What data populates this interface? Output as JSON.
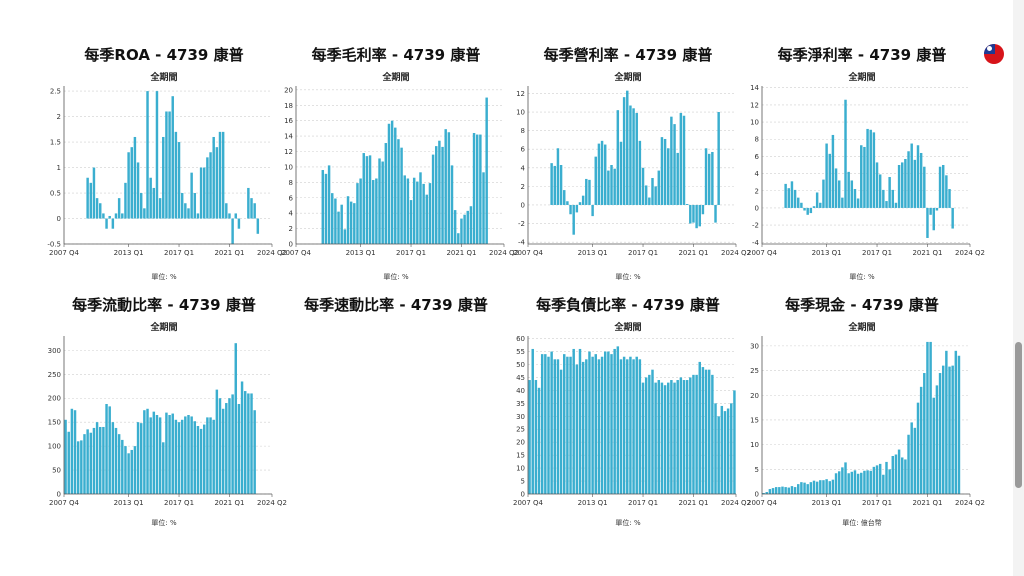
{
  "charts": [
    {
      "title": "每季ROA - 4739 康普",
      "subtitle": "全期間",
      "unit": "單位: %",
      "color": "#3aaecf",
      "chart_data": {
        "type": "bar",
        "ylim": [
          -0.5,
          2.6
        ],
        "yticks": [
          -0.5,
          0,
          0.5,
          1,
          1.5,
          2,
          2.5
        ],
        "ytick_labels": [
          "-0.5",
          "0",
          "0.5",
          "1",
          "1.5",
          "2",
          "2.5"
        ],
        "xtick_labels": [
          "2007 Q4",
          "2013 Q1",
          "2017 Q1",
          "2021 Q1",
          "2024 Q2"
        ],
        "xtick_index": [
          0,
          20,
          36,
          52,
          65
        ],
        "n": 66,
        "values": [
          null,
          null,
          null,
          null,
          null,
          null,
          null,
          0.8,
          0.7,
          1.0,
          0.4,
          0.3,
          0.1,
          -0.2,
          0.05,
          -0.2,
          0.1,
          0.4,
          0.1,
          0.7,
          1.3,
          1.4,
          1.6,
          1.1,
          0.5,
          0.2,
          2.5,
          0.8,
          0.6,
          2.5,
          0.4,
          1.6,
          2.1,
          2.1,
          2.4,
          1.7,
          1.5,
          0.5,
          0.3,
          0.2,
          0.9,
          0.5,
          0.1,
          1.0,
          1.0,
          1.2,
          1.3,
          1.6,
          1.4,
          1.7,
          1.7,
          0.3,
          0.1,
          -0.5,
          0.1,
          -0.2,
          null,
          null,
          0.6,
          0.4,
          0.3,
          -0.3,
          null,
          null,
          null,
          null
        ]
      }
    },
    {
      "title": "每季毛利率 - 4739 康普",
      "subtitle": "全期間",
      "unit": "單位: %",
      "color": "#3aaecf",
      "chart_data": {
        "type": "bar",
        "ylim": [
          0,
          20.5
        ],
        "yticks": [
          0,
          2,
          4,
          6,
          8,
          10,
          12,
          14,
          16,
          18,
          20
        ],
        "ytick_labels": [
          "0",
          "2",
          "4",
          "6",
          "8",
          "10",
          "12",
          "14",
          "16",
          "18",
          "20"
        ],
        "xtick_labels": [
          "2007 Q4",
          "2013 Q1",
          "2017 Q1",
          "2021 Q1",
          "2024 Q2"
        ],
        "xtick_index": [
          0,
          20,
          36,
          52,
          65
        ],
        "n": 66,
        "values": [
          null,
          null,
          null,
          null,
          null,
          null,
          null,
          null,
          9.6,
          9.1,
          10.2,
          6.6,
          5.9,
          4.2,
          5.1,
          1.9,
          6.2,
          5.5,
          5.3,
          7.9,
          8.5,
          11.8,
          11.4,
          11.5,
          8.3,
          8.5,
          11.1,
          10.7,
          13.1,
          15.6,
          16.0,
          15.1,
          13.6,
          12.5,
          8.9,
          8.5,
          5.7,
          8.6,
          8.1,
          9.3,
          7.8,
          6.4,
          7.9,
          11.6,
          12.7,
          13.4,
          12.6,
          14.9,
          14.5,
          10.2,
          4.4,
          1.4,
          3.3,
          3.8,
          4.3,
          4.9,
          14.4,
          14.2,
          14.2,
          9.3,
          19.0,
          null,
          null,
          null,
          null,
          null
        ]
      }
    },
    {
      "title": "每季營利率 - 4739 康普",
      "subtitle": "全期間",
      "unit": "單位: %",
      "color": "#3aaecf",
      "chart_data": {
        "type": "bar",
        "ylim": [
          -4.2,
          12.8
        ],
        "yticks": [
          -4,
          -2,
          0,
          2,
          4,
          6,
          8,
          10,
          12
        ],
        "ytick_labels": [
          "-4",
          "-2",
          "0",
          "2",
          "4",
          "6",
          "8",
          "10",
          "12"
        ],
        "xtick_labels": [
          "2007 Q4",
          "2013 Q1",
          "2017 Q1",
          "2021 Q1",
          "2024 Q2"
        ],
        "xtick_index": [
          0,
          20,
          36,
          52,
          65
        ],
        "n": 66,
        "values": [
          null,
          null,
          null,
          null,
          null,
          null,
          null,
          4.5,
          4.2,
          6.1,
          4.3,
          1.6,
          0.4,
          -1.0,
          -3.2,
          -0.8,
          0.3,
          1.0,
          2.8,
          2.7,
          -1.2,
          5.2,
          6.6,
          6.9,
          6.5,
          3.7,
          4.3,
          3.9,
          10.2,
          6.8,
          11.6,
          12.3,
          10.7,
          10.4,
          9.9,
          6.9,
          4.0,
          2.1,
          0.8,
          2.9,
          2.0,
          3.7,
          7.3,
          7.1,
          6.1,
          9.5,
          8.7,
          5.6,
          9.9,
          9.6,
          0.1,
          -2.0,
          -1.9,
          -2.5,
          -2.3,
          -1.0,
          6.1,
          5.5,
          5.7,
          -1.9,
          10.0,
          null,
          null,
          null,
          null,
          null
        ]
      }
    },
    {
      "title": "每季淨利率 - 4739 康普",
      "subtitle": "全期間",
      "unit": "單位: %",
      "color": "#3aaecf",
      "chart_data": {
        "type": "bar",
        "ylim": [
          -4.2,
          14.2
        ],
        "yticks": [
          -4,
          -2,
          0,
          2,
          4,
          6,
          8,
          10,
          12,
          14
        ],
        "ytick_labels": [
          "-4",
          "-2",
          "0",
          "2",
          "4",
          "6",
          "8",
          "10",
          "12",
          "14"
        ],
        "xtick_labels": [
          "2007 Q4",
          "2013 Q1",
          "2017 Q1",
          "2021 Q1",
          "2024 Q2"
        ],
        "xtick_index": [
          0,
          20,
          36,
          52,
          65
        ],
        "n": 66,
        "values": [
          null,
          null,
          null,
          null,
          null,
          null,
          null,
          2.8,
          2.3,
          3.1,
          2.1,
          1.2,
          0.6,
          -0.3,
          -0.8,
          -0.6,
          0.2,
          1.8,
          0.6,
          3.3,
          7.5,
          6.3,
          8.5,
          4.6,
          3.2,
          1.2,
          12.6,
          4.2,
          3.2,
          2.2,
          1.1,
          7.3,
          7.1,
          9.2,
          9.1,
          8.8,
          5.3,
          3.9,
          2.1,
          0.8,
          3.6,
          2.1,
          0.6,
          5.0,
          5.3,
          5.7,
          6.6,
          7.5,
          5.6,
          7.3,
          6.4,
          4.8,
          -3.5,
          -0.8,
          -2.6,
          -0.3,
          4.8,
          5.0,
          3.8,
          2.2,
          -2.4,
          null,
          null,
          null,
          null,
          null
        ]
      }
    },
    {
      "title": "每季流動比率 - 4739 康普",
      "subtitle": "全期間",
      "unit": "單位: %",
      "color": "#3aaecf",
      "chart_data": {
        "type": "bar",
        "ylim": [
          0,
          330
        ],
        "yticks": [
          0,
          50,
          100,
          150,
          200,
          250,
          300
        ],
        "ytick_labels": [
          "0",
          "50",
          "100",
          "150",
          "200",
          "250",
          "300"
        ],
        "xtick_labels": [
          "2007 Q4",
          "2013 Q1",
          "2017 Q1",
          "2021 Q1",
          "2024 Q2"
        ],
        "xtick_index": [
          0,
          20,
          36,
          52,
          65
        ],
        "n": 66,
        "values": [
          155,
          130,
          178,
          175,
          110,
          112,
          125,
          135,
          128,
          138,
          150,
          140,
          140,
          188,
          183,
          150,
          138,
          125,
          113,
          100,
          85,
          92,
          100,
          150,
          148,
          175,
          178,
          160,
          172,
          165,
          160,
          108,
          170,
          165,
          168,
          155,
          150,
          155,
          162,
          165,
          162,
          152,
          142,
          136,
          145,
          160,
          160,
          155,
          218,
          200,
          178,
          190,
          200,
          208,
          315,
          188,
          235,
          215,
          210,
          210,
          175,
          null,
          null,
          null,
          null,
          null
        ]
      }
    },
    {
      "title": "每季速動比率 - 4739 康普",
      "subtitle": "",
      "unit": "",
      "color": "#3aaecf",
      "chart_data": null
    },
    {
      "title": "每季負債比率 - 4739 康普",
      "subtitle": "全期間",
      "unit": "單位: %",
      "color": "#3aaecf",
      "chart_data": {
        "type": "bar",
        "ylim": [
          0,
          61
        ],
        "yticks": [
          0,
          5,
          10,
          15,
          20,
          25,
          30,
          35,
          40,
          45,
          50,
          55,
          60
        ],
        "ytick_labels": [
          "0",
          "5",
          "10",
          "15",
          "20",
          "25",
          "30",
          "35",
          "40",
          "45",
          "50",
          "55",
          "60"
        ],
        "xtick_labels": [
          "2007 Q4",
          "2013 Q1",
          "2017 Q1",
          "2021 Q1",
          "2024 Q2"
        ],
        "xtick_index": [
          0,
          20,
          36,
          52,
          65
        ],
        "n": 66,
        "values": [
          44,
          56,
          44,
          41,
          54,
          54,
          53,
          55,
          52,
          52,
          48,
          54,
          53,
          53,
          56,
          50,
          56,
          51,
          52,
          55,
          53,
          54,
          52,
          53,
          55,
          55,
          54,
          56,
          57,
          52,
          53,
          52,
          53,
          52,
          53,
          52,
          43,
          45,
          46,
          48,
          43,
          44,
          43,
          42,
          43,
          44,
          43,
          44,
          45,
          44,
          44,
          45,
          46,
          46,
          51,
          49,
          48,
          48,
          46,
          35,
          30,
          34,
          32,
          33,
          35,
          40
        ]
      }
    },
    {
      "title": "每季現金 - 4739 康普",
      "subtitle": "全期間",
      "unit": "單位: 億台幣",
      "color": "#3aaecf",
      "chart_data": {
        "type": "bar",
        "ylim": [
          0,
          32
        ],
        "yticks": [
          0,
          5,
          10,
          15,
          20,
          25,
          30
        ],
        "ytick_labels": [
          "0",
          "5",
          "10",
          "15",
          "20",
          "25",
          "30"
        ],
        "xtick_labels": [
          "2007 Q4",
          "2013 Q1",
          "2017 Q1",
          "2021 Q1",
          "2024 Q2"
        ],
        "xtick_index": [
          0,
          20,
          36,
          52,
          65
        ],
        "n": 66,
        "values": [
          0.2,
          0.4,
          1.0,
          1.2,
          1.4,
          1.4,
          1.5,
          1.4,
          1.3,
          1.6,
          1.4,
          2.0,
          2.4,
          2.3,
          2.0,
          2.4,
          2.7,
          2.5,
          2.8,
          2.8,
          3.0,
          2.6,
          2.9,
          4.2,
          4.6,
          5.4,
          6.4,
          4.2,
          4.5,
          4.8,
          4.1,
          4.3,
          4.7,
          4.8,
          4.7,
          5.5,
          5.8,
          6.1,
          3.9,
          6.5,
          5.0,
          7.7,
          8.0,
          9.0,
          7.4,
          7.0,
          12.0,
          14.5,
          13.4,
          18.5,
          21.7,
          24.5,
          30.8,
          30.8,
          19.5,
          22.0,
          24.5,
          26.0,
          29.0,
          25.8,
          26.0,
          29.0,
          28.0,
          null,
          null,
          null
        ]
      }
    }
  ]
}
